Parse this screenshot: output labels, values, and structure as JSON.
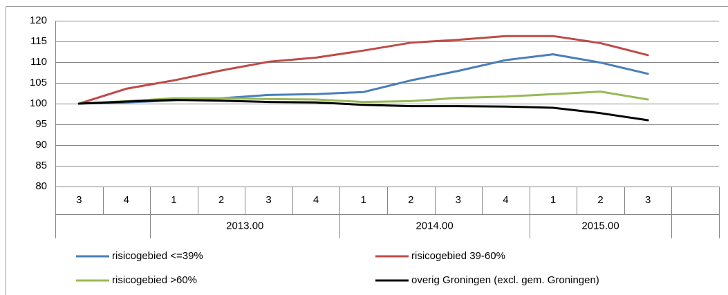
{
  "chart_data": {
    "type": "line",
    "categories": [
      "3",
      "4",
      "1",
      "2",
      "3",
      "4",
      "1",
      "2",
      "3",
      "4",
      "1",
      "2",
      "3",
      null
    ],
    "groups": [
      {
        "label": null,
        "span": 2
      },
      {
        "label": "2013.00",
        "span": 4
      },
      {
        "label": "2014.00",
        "span": 4
      },
      {
        "label": "2015.00",
        "span": 3
      },
      {
        "label": null,
        "span": 1
      }
    ],
    "series": [
      {
        "name": "risicogebied <=39%",
        "color": "#4a7ebb",
        "values": [
          100,
          100.3,
          100.8,
          101.3,
          102.1,
          102.3,
          102.8,
          105.6,
          107.9,
          110.5,
          111.9,
          109.9,
          107.2,
          null
        ]
      },
      {
        "name": "risicogebied 39-60%",
        "color": "#be4b48",
        "values": [
          100,
          103.6,
          105.6,
          108.0,
          110.1,
          111.1,
          112.8,
          114.7,
          115.4,
          116.3,
          116.3,
          114.6,
          111.7,
          null
        ]
      },
      {
        "name": "risicogebied >60%",
        "color": "#98b954",
        "values": [
          100,
          100.6,
          101.3,
          101.3,
          101.1,
          101.0,
          100.4,
          100.6,
          101.4,
          101.7,
          102.3,
          102.9,
          101.0,
          null
        ]
      },
      {
        "name": "overig Groningen (excl. gem. Groningen)",
        "color": "#000000",
        "values": [
          100,
          100.5,
          100.9,
          100.7,
          100.4,
          100.3,
          99.7,
          99.4,
          99.4,
          99.3,
          99.0,
          97.7,
          96.0,
          null
        ]
      }
    ],
    "ylim": [
      80,
      120
    ],
    "yticks": [
      80,
      85,
      90,
      95,
      100,
      105,
      110,
      115,
      120
    ],
    "grid": true,
    "legend": "bottom"
  }
}
